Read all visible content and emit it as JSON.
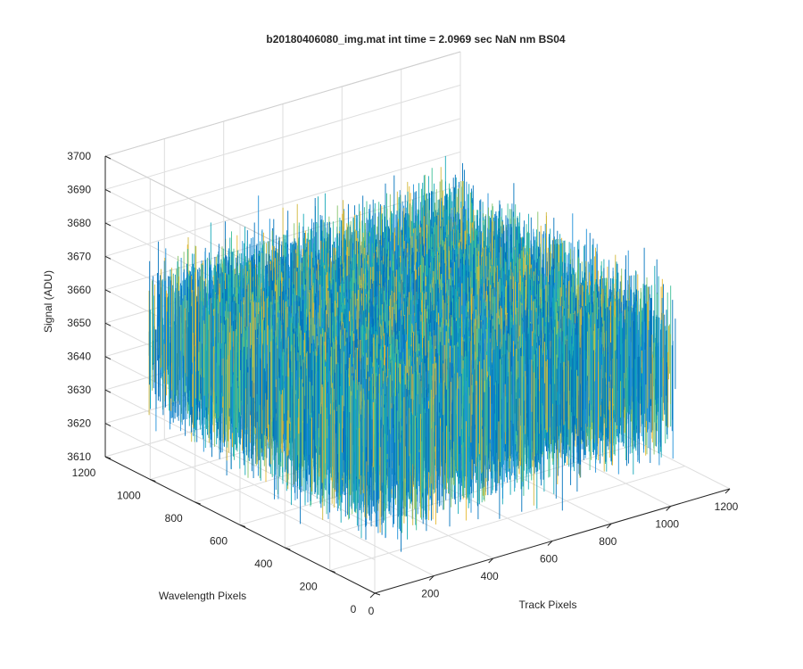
{
  "chart_data": {
    "type": "surface-3d",
    "title": "b20180406080_img.mat int time = 2.0969 sec  NaN nm BS04",
    "xlabel": "Track Pixels",
    "ylabel": "Wavelength Pixels",
    "zlabel": "Signal (ADU)",
    "xlim": [
      0,
      1200
    ],
    "ylim": [
      0,
      1200
    ],
    "zlim": [
      3610,
      3700
    ],
    "xticks": [
      "0",
      "200",
      "400",
      "600",
      "800",
      "1000",
      "1200"
    ],
    "yticks": [
      "0",
      "200",
      "400",
      "600",
      "800",
      "1000",
      "1200"
    ],
    "zticks": [
      "3610",
      "3620",
      "3630",
      "3640",
      "3650",
      "3660",
      "3670",
      "3680",
      "3690",
      "3700"
    ],
    "data_extent": {
      "x": [
        0,
        1024
      ],
      "y": [
        0,
        1024
      ]
    },
    "signal": {
      "mean": 3650,
      "typical_min": 3625,
      "typical_max": 3678
    },
    "grid": true,
    "colormap": "parula",
    "colors": [
      "#0072bd",
      "#1e90d8",
      "#14a8b8",
      "#3cbf96",
      "#86c46a",
      "#d1b83c",
      "#e7b830"
    ]
  }
}
